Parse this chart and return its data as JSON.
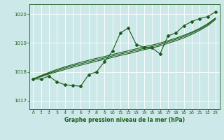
{
  "title": "Graphe pression niveau de la mer (hPa)",
  "xlim": [
    -0.5,
    23.5
  ],
  "ylim": [
    1016.7,
    1020.35
  ],
  "yticks": [
    1017,
    1018,
    1019,
    1020
  ],
  "xticks": [
    0,
    1,
    2,
    3,
    4,
    5,
    6,
    7,
    8,
    9,
    10,
    11,
    12,
    13,
    14,
    15,
    16,
    17,
    18,
    19,
    20,
    21,
    22,
    23
  ],
  "bg_color": "#cde8e8",
  "grid_color": "#aed4d4",
  "line_color": "#1a5c1a",
  "series_main": [
    0,
    1,
    2,
    3,
    4,
    5,
    6,
    7,
    8,
    9,
    10,
    11,
    12,
    13,
    14,
    15,
    16,
    17,
    18,
    19,
    20,
    21,
    22,
    23
  ],
  "values_main": [
    1017.75,
    1017.75,
    1017.85,
    1017.65,
    1017.55,
    1017.52,
    1017.5,
    1017.9,
    1018.0,
    1018.35,
    1018.72,
    1019.35,
    1019.52,
    1018.95,
    1018.85,
    1018.83,
    1018.62,
    1019.25,
    1019.35,
    1019.6,
    1019.75,
    1019.85,
    1019.92,
    1020.08
  ],
  "values_trend1": [
    1017.75,
    1017.87,
    1017.98,
    1018.08,
    1018.17,
    1018.25,
    1018.33,
    1018.4,
    1018.47,
    1018.53,
    1018.6,
    1018.67,
    1018.73,
    1018.8,
    1018.87,
    1018.93,
    1019.0,
    1019.08,
    1019.17,
    1019.27,
    1019.38,
    1019.51,
    1019.67,
    1019.87
  ],
  "values_trend2": [
    1017.75,
    1017.85,
    1017.95,
    1018.04,
    1018.13,
    1018.21,
    1018.28,
    1018.35,
    1018.42,
    1018.48,
    1018.55,
    1018.62,
    1018.68,
    1018.75,
    1018.82,
    1018.88,
    1018.95,
    1019.04,
    1019.13,
    1019.23,
    1019.35,
    1019.48,
    1019.64,
    1019.85
  ],
  "values_trend3": [
    1017.75,
    1017.83,
    1017.92,
    1018.0,
    1018.08,
    1018.16,
    1018.23,
    1018.3,
    1018.37,
    1018.43,
    1018.5,
    1018.57,
    1018.63,
    1018.7,
    1018.77,
    1018.83,
    1018.9,
    1018.99,
    1019.08,
    1019.18,
    1019.3,
    1019.44,
    1019.6,
    1019.82
  ]
}
